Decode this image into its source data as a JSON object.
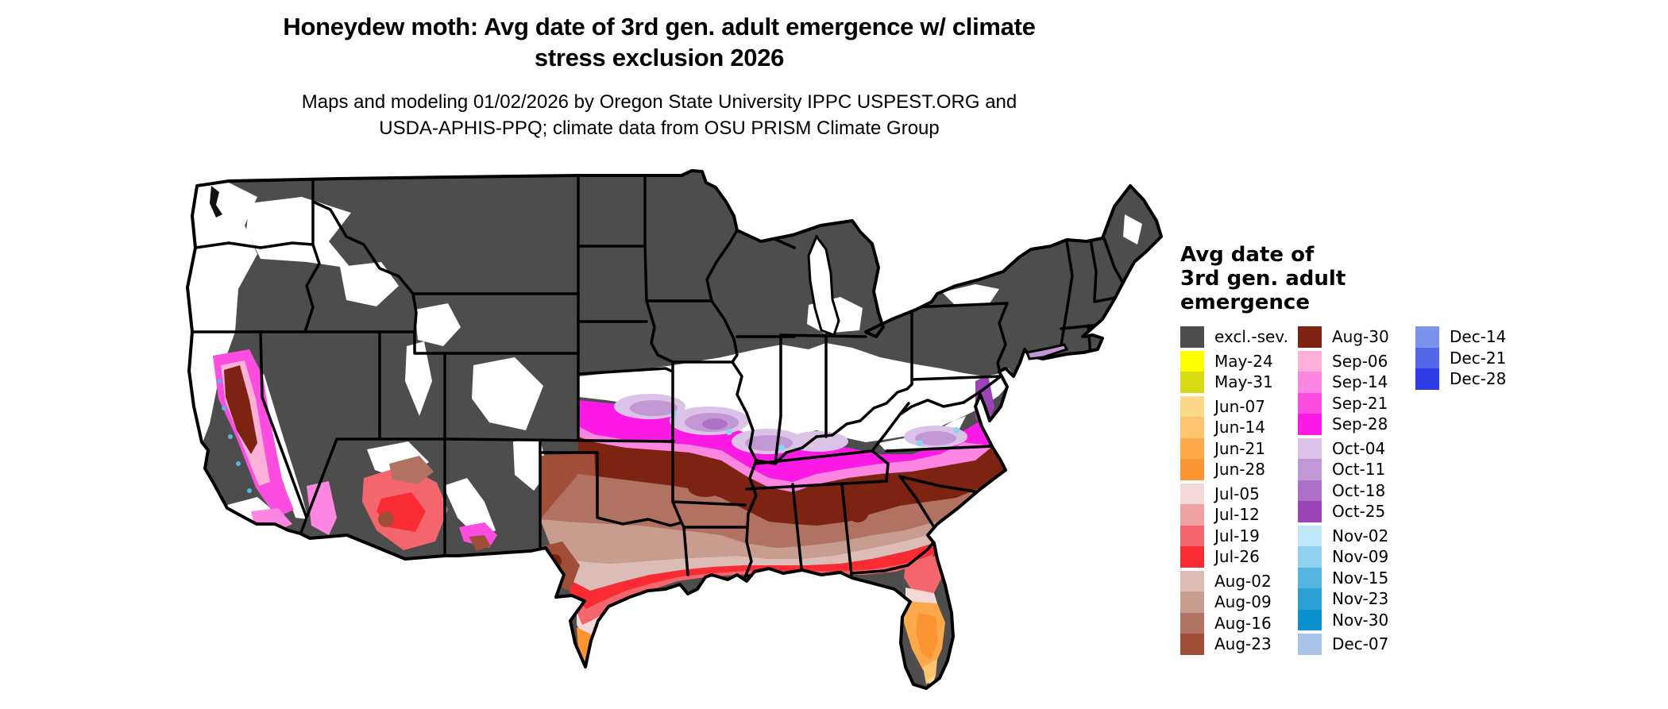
{
  "title": {
    "line1": "Honeydew moth: Avg date of 3rd gen. adult emergence w/ climate",
    "line2": "stress exclusion 2026"
  },
  "subtitle": {
    "line1": "Maps and modeling 01/02/2026 by Oregon State University IPPC USPEST.ORG and",
    "line2": "USDA-APHIS-PPQ; climate data from OSU PRISM Climate Group"
  },
  "legend": {
    "title_lines": [
      "Avg date of",
      "3rd gen. adult",
      "emergence"
    ],
    "columns": [
      [
        {
          "label": "excl.-sev.",
          "color": "#4D4D4D"
        },
        {
          "label": "May-24",
          "color": "#FFFF00",
          "gap_before": true
        },
        {
          "label": "May-31",
          "color": "#D6DB13"
        },
        {
          "label": "Jun-07",
          "color": "#FBD98A",
          "gap_before": true
        },
        {
          "label": "Jun-14",
          "color": "#FDC36F"
        },
        {
          "label": "Jun-21",
          "color": "#FDA84B"
        },
        {
          "label": "Jun-28",
          "color": "#FA9532"
        },
        {
          "label": "Jul-05",
          "color": "#F4D9DA",
          "gap_before": true
        },
        {
          "label": "Jul-12",
          "color": "#EFA1A4"
        },
        {
          "label": "Jul-19",
          "color": "#F4666C"
        },
        {
          "label": "Jul-26",
          "color": "#FA2B33"
        },
        {
          "label": "Aug-02",
          "color": "#DBBCB7",
          "gap_before": true
        },
        {
          "label": "Aug-09",
          "color": "#C99C90"
        },
        {
          "label": "Aug-16",
          "color": "#B27261"
        },
        {
          "label": "Aug-23",
          "color": "#A04E38"
        }
      ],
      [
        {
          "label": "Aug-30",
          "color": "#7C2312"
        },
        {
          "label": "Sep-06",
          "color": "#FFB0D8",
          "gap_before": true
        },
        {
          "label": "Sep-14",
          "color": "#FC86E2"
        },
        {
          "label": "Sep-21",
          "color": "#FD4CE0"
        },
        {
          "label": "Sep-28",
          "color": "#FD1AE4"
        },
        {
          "label": "Oct-04",
          "color": "#DBC3E8",
          "gap_before": true
        },
        {
          "label": "Oct-11",
          "color": "#C197D6"
        },
        {
          "label": "Oct-18",
          "color": "#AE70C6"
        },
        {
          "label": "Oct-25",
          "color": "#9B44B5"
        },
        {
          "label": "Nov-02",
          "color": "#BFE7FA",
          "gap_before": true
        },
        {
          "label": "Nov-09",
          "color": "#8FD1EE"
        },
        {
          "label": "Nov-15",
          "color": "#54B5E0"
        },
        {
          "label": "Nov-23",
          "color": "#2DA0D5"
        },
        {
          "label": "Nov-30",
          "color": "#0A90CD"
        },
        {
          "label": "Dec-07",
          "color": "#A9C3E9",
          "gap_before": true
        }
      ],
      [
        {
          "label": "Dec-14",
          "color": "#7B93EA"
        },
        {
          "label": "Dec-21",
          "color": "#5266E8"
        },
        {
          "label": "Dec-28",
          "color": "#2C3CE6"
        }
      ]
    ]
  },
  "map": {
    "base_color": "#4D4D4D",
    "border_color": "#000000",
    "water_color": "#FFFFFF"
  }
}
